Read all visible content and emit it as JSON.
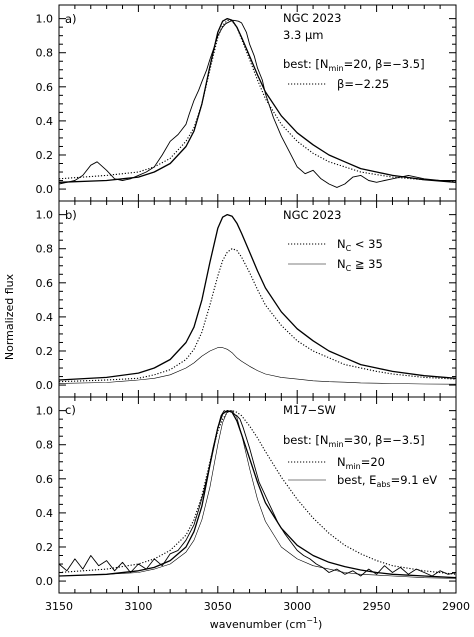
{
  "chart_data": {
    "type": "line",
    "ylabel": "Normalized flux",
    "xlabel": "wavenumber (cm",
    "xlabel_sup": "−1",
    "xlabel_close": ")",
    "xlim": [
      3150,
      2900
    ],
    "ylim": [
      -0.07,
      1.08
    ],
    "x_ticks": [
      3150,
      3100,
      3050,
      3000,
      2950,
      2900
    ],
    "y_ticks": [
      0.0,
      0.2,
      0.4,
      0.6,
      0.8,
      1.0
    ],
    "y_tick_labels": [
      "0.0",
      "0.2",
      "0.4",
      "0.6",
      "0.8",
      "1.0"
    ],
    "panels": [
      {
        "id": "a",
        "panel_label": "a)",
        "annotations": {
          "object": "NGC 2023",
          "band": "3.3 μm",
          "best_prefix": "best: [N",
          "best_sub": "min",
          "best_rest": "=20, β=−3.5]",
          "alt_label": "β=−2.25"
        },
        "series": [
          {
            "style": "solid",
            "x": [
              3150,
              3120,
              3100,
              3090,
              3080,
              3070,
              3065,
              3060,
              3055,
              3050,
              3047,
              3044,
              3041,
              3038,
              3035,
              3030,
              3025,
              3020,
              3010,
              3000,
              2990,
              2980,
              2970,
              2960,
              2950,
              2940,
              2920,
              2900
            ],
            "y": [
              0.04,
              0.05,
              0.07,
              0.1,
              0.15,
              0.25,
              0.34,
              0.5,
              0.72,
              0.92,
              0.985,
              1.0,
              0.99,
              0.95,
              0.89,
              0.78,
              0.67,
              0.57,
              0.43,
              0.33,
              0.26,
              0.2,
              0.16,
              0.12,
              0.1,
              0.08,
              0.055,
              0.04
            ]
          },
          {
            "style": "dotted",
            "x": [
              3150,
              3120,
              3100,
              3090,
              3080,
              3070,
              3065,
              3060,
              3055,
              3050,
              3047,
              3044,
              3041,
              3038,
              3035,
              3030,
              3025,
              3020,
              3010,
              3000,
              2990,
              2980,
              2970,
              2960,
              2950,
              2940,
              2920,
              2900
            ],
            "y": [
              0.06,
              0.08,
              0.1,
              0.13,
              0.18,
              0.28,
              0.36,
              0.5,
              0.7,
              0.89,
              0.96,
              0.99,
              0.985,
              0.95,
              0.88,
              0.76,
              0.64,
              0.53,
              0.38,
              0.28,
              0.21,
              0.16,
              0.13,
              0.1,
              0.085,
              0.07,
              0.055,
              0.045
            ]
          },
          {
            "style": "observed",
            "x": [
              3150,
              3145,
              3140,
              3135,
              3130,
              3126,
              3120,
              3115,
              3110,
              3105,
              3100,
              3095,
              3090,
              3085,
              3080,
              3075,
              3070,
              3068,
              3065,
              3062,
              3060,
              3057,
              3055,
              3052,
              3050,
              3047,
              3045,
              3042,
              3040,
              3037,
              3035,
              3032,
              3030,
              3027,
              3025,
              3022,
              3020,
              3015,
              3010,
              3005,
              3000,
              2995,
              2990,
              2985,
              2980,
              2975,
              2970,
              2965,
              2960,
              2955,
              2950,
              2945,
              2940,
              2930,
              2920,
              2910,
              2900
            ],
            "y": [
              0.03,
              0.04,
              0.05,
              0.08,
              0.14,
              0.16,
              0.11,
              0.06,
              0.05,
              0.06,
              0.08,
              0.1,
              0.13,
              0.2,
              0.28,
              0.32,
              0.38,
              0.44,
              0.52,
              0.58,
              0.63,
              0.7,
              0.76,
              0.84,
              0.9,
              0.95,
              0.97,
              0.985,
              0.99,
              0.985,
              0.975,
              0.92,
              0.85,
              0.78,
              0.71,
              0.64,
              0.56,
              0.42,
              0.31,
              0.22,
              0.13,
              0.09,
              0.11,
              0.06,
              0.03,
              0.01,
              0.03,
              0.07,
              0.08,
              0.05,
              0.04,
              0.05,
              0.06,
              0.08,
              0.06,
              0.05,
              0.05
            ]
          }
        ]
      },
      {
        "id": "b",
        "panel_label": "b)",
        "annotations": {
          "object": "NGC 2023",
          "nc_prefix": "N",
          "nc_sub": "C",
          "nc_low": " < 35",
          "nc_high": " ≧ 35"
        },
        "series": [
          {
            "style": "solid",
            "x": [
              3150,
              3120,
              3100,
              3090,
              3080,
              3070,
              3065,
              3060,
              3055,
              3050,
              3047,
              3044,
              3041,
              3038,
              3035,
              3030,
              3025,
              3020,
              3010,
              3000,
              2990,
              2980,
              2970,
              2960,
              2950,
              2940,
              2920,
              2900
            ],
            "y": [
              0.03,
              0.045,
              0.07,
              0.1,
              0.15,
              0.25,
              0.34,
              0.5,
              0.72,
              0.92,
              0.985,
              1.0,
              0.99,
              0.95,
              0.89,
              0.78,
              0.67,
              0.57,
              0.43,
              0.33,
              0.26,
              0.2,
              0.16,
              0.12,
              0.1,
              0.08,
              0.055,
              0.04
            ]
          },
          {
            "style": "dotted",
            "x": [
              3150,
              3120,
              3100,
              3090,
              3080,
              3070,
              3065,
              3060,
              3055,
              3050,
              3047,
              3044,
              3041,
              3038,
              3035,
              3030,
              3025,
              3020,
              3010,
              3000,
              2990,
              2980,
              2970,
              2960,
              2950,
              2940,
              2920,
              2900
            ],
            "y": [
              0.02,
              0.03,
              0.04,
              0.06,
              0.09,
              0.15,
              0.21,
              0.31,
              0.47,
              0.64,
              0.73,
              0.78,
              0.8,
              0.79,
              0.75,
              0.66,
              0.56,
              0.47,
              0.35,
              0.26,
              0.2,
              0.16,
              0.12,
              0.1,
              0.08,
              0.065,
              0.045,
              0.035
            ]
          },
          {
            "style": "thin",
            "x": [
              3150,
              3120,
              3100,
              3090,
              3080,
              3070,
              3065,
              3060,
              3055,
              3050,
              3047,
              3044,
              3041,
              3038,
              3035,
              3030,
              3025,
              3020,
              3010,
              3000,
              2990,
              2980,
              2970,
              2960,
              2950,
              2940,
              2920,
              2900
            ],
            "y": [
              0.01,
              0.015,
              0.03,
              0.04,
              0.06,
              0.1,
              0.13,
              0.17,
              0.2,
              0.22,
              0.22,
              0.21,
              0.19,
              0.16,
              0.14,
              0.11,
              0.085,
              0.065,
              0.045,
              0.035,
              0.025,
              0.02,
              0.017,
              0.013,
              0.011,
              0.009,
              0.006,
              0.005
            ]
          }
        ]
      },
      {
        "id": "c",
        "panel_label": "c)",
        "annotations": {
          "object": "M17−SW",
          "best_prefix": "best: [N",
          "best_sub": "min",
          "best_rest": "=30, β=−3.5]",
          "alt_prefix": "N",
          "alt_sub": "min",
          "alt_rest": "=20",
          "eabs_prefix": "best, E",
          "eabs_sub": "abs",
          "eabs_rest": "=9.1 eV"
        },
        "series": [
          {
            "style": "solid",
            "x": [
              3150,
              3120,
              3100,
              3090,
              3080,
              3070,
              3065,
              3060,
              3055,
              3050,
              3047,
              3044,
              3041,
              3038,
              3035,
              3030,
              3025,
              3020,
              3010,
              3000,
              2990,
              2980,
              2970,
              2960,
              2950,
              2940,
              2920,
              2900
            ],
            "y": [
              0.03,
              0.04,
              0.06,
              0.08,
              0.12,
              0.2,
              0.29,
              0.44,
              0.68,
              0.9,
              0.98,
              1.0,
              0.99,
              0.94,
              0.86,
              0.72,
              0.58,
              0.46,
              0.31,
              0.21,
              0.15,
              0.11,
              0.085,
              0.065,
              0.05,
              0.04,
              0.03,
              0.02
            ]
          },
          {
            "style": "dotted",
            "x": [
              3150,
              3120,
              3100,
              3090,
              3080,
              3070,
              3065,
              3060,
              3055,
              3050,
              3047,
              3044,
              3041,
              3038,
              3035,
              3030,
              3025,
              3020,
              3010,
              3000,
              2990,
              2980,
              2970,
              2960,
              2950,
              2940,
              2920,
              2900
            ],
            "y": [
              0.05,
              0.07,
              0.1,
              0.13,
              0.18,
              0.27,
              0.36,
              0.5,
              0.7,
              0.88,
              0.95,
              0.99,
              1.0,
              0.99,
              0.97,
              0.91,
              0.84,
              0.76,
              0.61,
              0.48,
              0.37,
              0.28,
              0.21,
              0.16,
              0.12,
              0.09,
              0.06,
              0.04
            ]
          },
          {
            "style": "thin",
            "x": [
              3150,
              3120,
              3100,
              3090,
              3080,
              3070,
              3065,
              3060,
              3055,
              3050,
              3047,
              3044,
              3041,
              3038,
              3035,
              3030,
              3025,
              3020,
              3010,
              3000,
              2990,
              2980,
              2970,
              2960,
              2950,
              2940,
              2920,
              2900
            ],
            "y": [
              0.03,
              0.04,
              0.05,
              0.07,
              0.1,
              0.17,
              0.24,
              0.36,
              0.55,
              0.8,
              0.93,
              0.995,
              1.0,
              0.96,
              0.86,
              0.66,
              0.48,
              0.35,
              0.2,
              0.13,
              0.09,
              0.07,
              0.05,
              0.04,
              0.035,
              0.03,
              0.02,
              0.015
            ]
          },
          {
            "style": "observed",
            "x": [
              3150,
              3145,
              3140,
              3135,
              3130,
              3125,
              3120,
              3115,
              3110,
              3105,
              3100,
              3095,
              3090,
              3085,
              3080,
              3075,
              3070,
              3065,
              3062,
              3059,
              3056,
              3053,
              3050,
              3048,
              3046,
              3044,
              3042,
              3040,
              3038,
              3036,
              3034,
              3032,
              3030,
              3027,
              3024,
              3021,
              3018,
              3015,
              3012,
              3008,
              3004,
              3000,
              2996,
              2992,
              2988,
              2984,
              2980,
              2975,
              2970,
              2965,
              2960,
              2955,
              2950,
              2945,
              2940,
              2935,
              2930,
              2925,
              2920,
              2915,
              2910,
              2905,
              2900
            ],
            "y": [
              0.1,
              0.06,
              0.13,
              0.07,
              0.15,
              0.09,
              0.12,
              0.06,
              0.11,
              0.05,
              0.1,
              0.07,
              0.13,
              0.09,
              0.16,
              0.18,
              0.24,
              0.33,
              0.42,
              0.52,
              0.64,
              0.78,
              0.9,
              0.97,
              1.0,
              0.99,
              1.0,
              0.98,
              0.97,
              0.95,
              0.9,
              0.84,
              0.78,
              0.68,
              0.58,
              0.52,
              0.46,
              0.4,
              0.34,
              0.28,
              0.23,
              0.18,
              0.15,
              0.13,
              0.1,
              0.08,
              0.05,
              0.07,
              0.04,
              0.06,
              0.03,
              0.07,
              0.04,
              0.09,
              0.05,
              0.08,
              0.04,
              0.07,
              0.05,
              0.03,
              0.06,
              0.04,
              0.05
            ]
          }
        ]
      }
    ]
  }
}
